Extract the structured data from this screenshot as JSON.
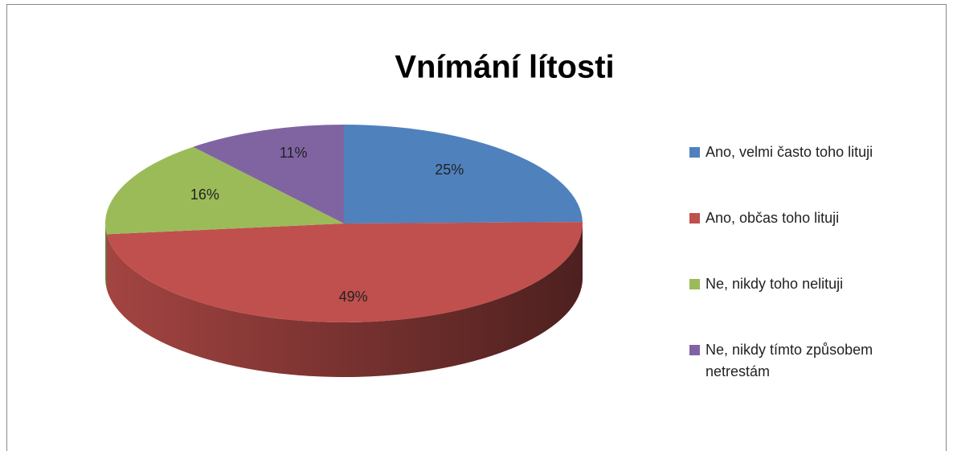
{
  "chart_data": {
    "type": "pie",
    "title": "Vnímání lítosti",
    "categories": [
      "Ano, velmi často toho lituji",
      "Ano, občas toho lituji",
      "Ne, nikdy toho nelituji",
      "Ne, nikdy tímto způsobem netrestám"
    ],
    "values": [
      25,
      49,
      16,
      11
    ],
    "value_labels": [
      "25%",
      "49%",
      "16%",
      "11%"
    ],
    "colors": [
      "#4f81bd",
      "#c0504d",
      "#9bbb59",
      "#8064a2"
    ],
    "legend": "right"
  }
}
